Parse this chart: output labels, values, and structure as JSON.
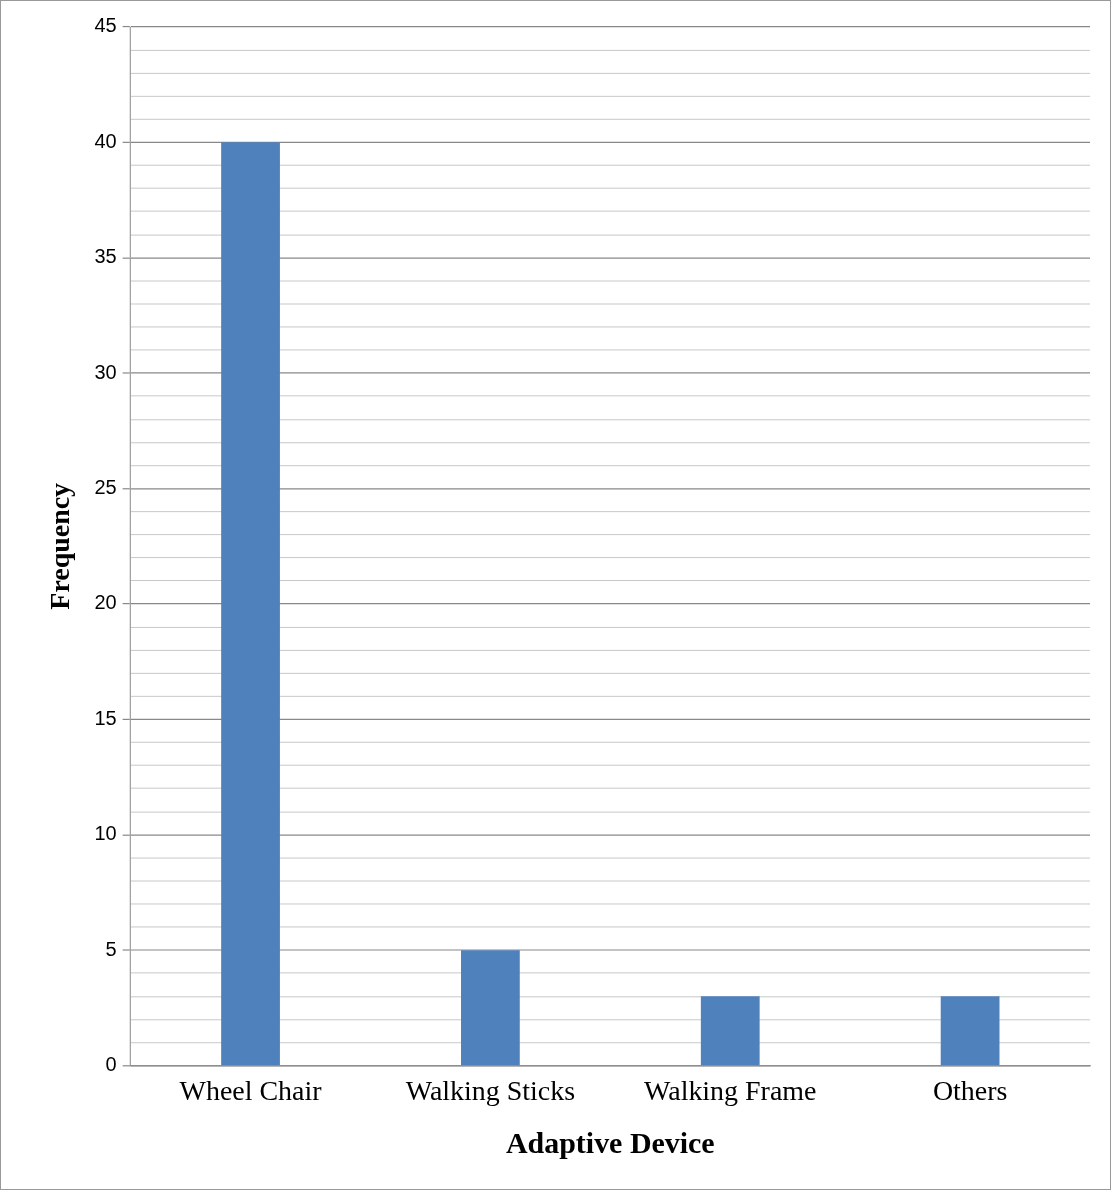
{
  "chart_data": {
    "type": "bar",
    "xlabel": "Adaptive Device",
    "ylabel": "Frequency",
    "categories": [
      "Wheel Chair",
      "Walking Sticks",
      "Walking Frame",
      "Others"
    ],
    "values": [
      40,
      5,
      3,
      3
    ],
    "color": "#4f81bd",
    "ylim": [
      0,
      45
    ],
    "yticks": [
      0,
      {
        "value": 1,
        "label": null
      },
      {
        "value": 2,
        "label": null
      },
      {
        "value": 3,
        "label": null
      },
      {
        "value": 4,
        "label": null
      },
      5,
      {
        "value": 6,
        "label": null
      },
      {
        "value": 7,
        "label": null
      },
      {
        "value": 8,
        "label": null
      },
      {
        "value": 9,
        "label": null
      },
      10,
      {
        "value": 11,
        "label": null
      },
      {
        "value": 12,
        "label": null
      },
      {
        "value": 13,
        "label": null
      },
      {
        "value": 14,
        "label": null
      },
      15,
      {
        "value": 16,
        "label": null
      },
      {
        "value": 17,
        "label": null
      },
      {
        "value": 18,
        "label": null
      },
      {
        "value": 19,
        "label": null
      },
      20,
      {
        "value": 21,
        "label": null
      },
      {
        "value": 22,
        "label": null
      },
      {
        "value": 23,
        "label": null
      },
      {
        "value": 24,
        "label": null
      },
      25,
      {
        "value": 26,
        "label": null
      },
      {
        "value": 27,
        "label": null
      },
      {
        "value": 28,
        "label": null
      },
      {
        "value": 29,
        "label": null
      },
      30,
      {
        "value": 31,
        "label": null
      },
      {
        "value": 32,
        "label": null
      },
      {
        "value": 33,
        "label": null
      },
      {
        "value": 34,
        "label": null
      },
      35,
      {
        "value": 36,
        "label": null
      },
      {
        "value": 37,
        "label": null
      },
      {
        "value": 38,
        "label": null
      },
      {
        "value": 39,
        "label": null
      },
      40,
      {
        "value": 41,
        "label": null
      },
      {
        "value": 42,
        "label": null
      },
      {
        "value": 43,
        "label": null
      },
      {
        "value": 44,
        "label": null
      },
      45
    ],
    "grid": "y",
    "legend": false
  }
}
